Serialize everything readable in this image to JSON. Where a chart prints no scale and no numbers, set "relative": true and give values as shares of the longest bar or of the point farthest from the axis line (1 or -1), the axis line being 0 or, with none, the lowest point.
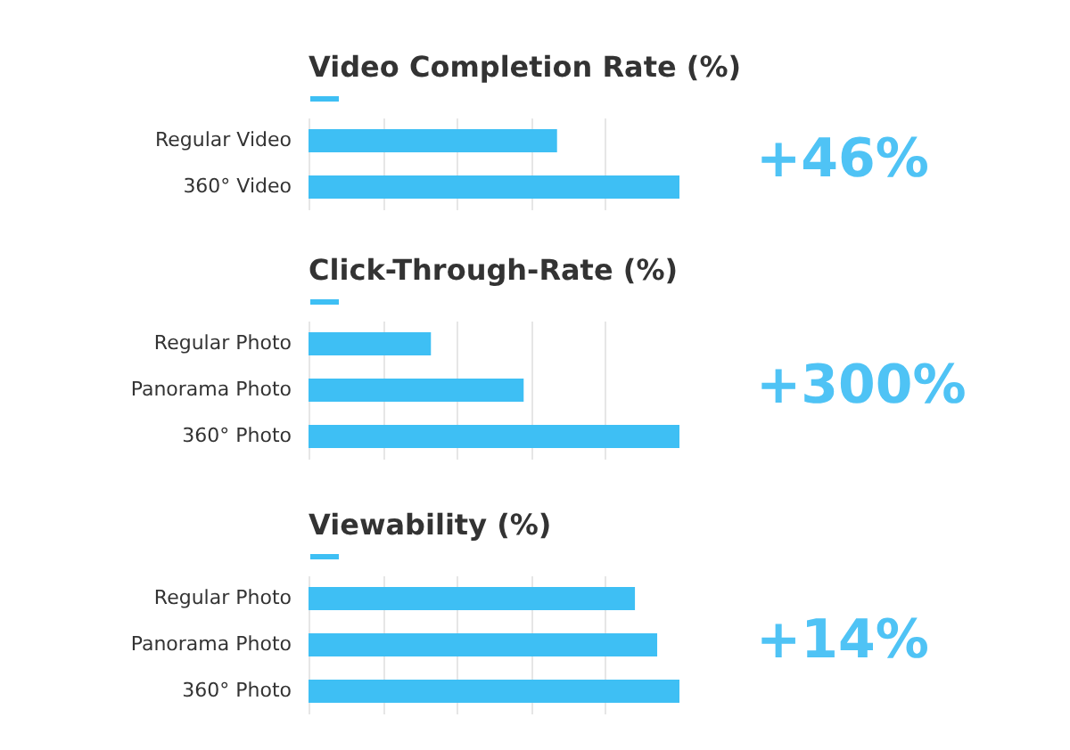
{
  "chart_data": [
    {
      "type": "bar",
      "orientation": "horizontal",
      "relative": true,
      "title": "Video Completion Rate (%)",
      "categories": [
        "Regular Video",
        "360° Video"
      ],
      "values": [
        0.67,
        1
      ],
      "color": "#3ebff4",
      "grid": "x",
      "annotations": [
        "+46%"
      ]
    },
    {
      "type": "bar",
      "orientation": "horizontal",
      "relative": true,
      "title": "Click-Through-Rate (%)",
      "categories": [
        "Regular Photo",
        "Panorama Photo",
        "360° Photo"
      ],
      "values": [
        0.33,
        0.58,
        1
      ],
      "color": "#3ebff4",
      "grid": "x",
      "annotations": [
        "+300%"
      ]
    },
    {
      "type": "bar",
      "orientation": "horizontal",
      "relative": true,
      "title": "Viewability (%)",
      "categories": [
        "Regular Photo",
        "Panorama Photo",
        "360° Photo"
      ],
      "values": [
        0.88,
        0.94,
        1
      ],
      "color": "#3ebff4",
      "grid": "x",
      "annotations": [
        "+14%"
      ]
    }
  ]
}
